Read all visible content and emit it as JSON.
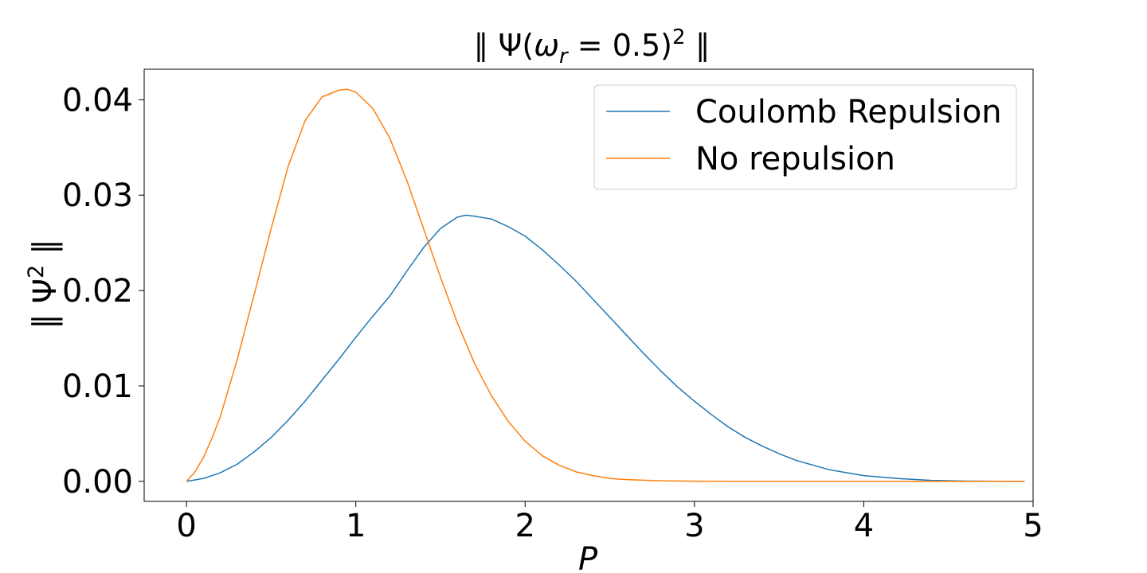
{
  "chart_data": {
    "type": "line",
    "title_parts": {
      "open": "∥ Ψ(",
      "omega": "ω",
      "sub": "r",
      "eq": " = 0.5)",
      "sup": "2",
      "close": " ∥"
    },
    "xlabel": "P",
    "ylabel_parts": {
      "open": "∥ Ψ",
      "sup": "2",
      "close": " ∥"
    },
    "xlim": [
      -0.25,
      5.0
    ],
    "ylim": [
      -0.0021,
      0.0432
    ],
    "xticks": [
      0,
      1,
      2,
      3,
      4,
      5
    ],
    "xtick_labels": [
      "0",
      "1",
      "2",
      "3",
      "4",
      "5"
    ],
    "yticks": [
      0.0,
      0.01,
      0.02,
      0.03,
      0.04
    ],
    "ytick_labels": [
      "0.00",
      "0.01",
      "0.02",
      "0.03",
      "0.04"
    ],
    "grid": false,
    "legend_position": "top-right",
    "series": [
      {
        "name": "Coulomb Repulsion",
        "color": "#1f77b4",
        "x": [
          0.0,
          0.1,
          0.2,
          0.3,
          0.4,
          0.5,
          0.6,
          0.7,
          0.8,
          0.9,
          1.0,
          1.1,
          1.2,
          1.3,
          1.4,
          1.5,
          1.6,
          1.65,
          1.7,
          1.8,
          1.9,
          2.0,
          2.1,
          2.2,
          2.3,
          2.4,
          2.5,
          2.6,
          2.7,
          2.8,
          2.9,
          3.0,
          3.1,
          3.2,
          3.3,
          3.4,
          3.5,
          3.6,
          3.7,
          3.8,
          3.9,
          4.0,
          4.2,
          4.4,
          4.6,
          4.8,
          4.95
        ],
        "y": [
          0.0,
          0.0003,
          0.0009,
          0.0018,
          0.0031,
          0.0046,
          0.0064,
          0.0084,
          0.0106,
          0.0128,
          0.0151,
          0.0173,
          0.0194,
          0.022,
          0.0245,
          0.0265,
          0.0277,
          0.0279,
          0.0278,
          0.0275,
          0.0267,
          0.0257,
          0.0243,
          0.0227,
          0.021,
          0.0191,
          0.0172,
          0.0153,
          0.0134,
          0.0116,
          0.0099,
          0.0084,
          0.007,
          0.0057,
          0.0046,
          0.0037,
          0.0029,
          0.0022,
          0.0017,
          0.0012,
          0.0009,
          0.0006,
          0.0003,
          0.0001,
          3e-05,
          1e-05,
          0.0
        ]
      },
      {
        "name": "No repulsion",
        "color": "#ff7f0e",
        "x": [
          0.0,
          0.05,
          0.1,
          0.15,
          0.2,
          0.3,
          0.4,
          0.5,
          0.6,
          0.7,
          0.8,
          0.9,
          0.95,
          1.0,
          1.1,
          1.2,
          1.3,
          1.4,
          1.5,
          1.6,
          1.7,
          1.8,
          1.9,
          2.0,
          2.1,
          2.2,
          2.3,
          2.4,
          2.5,
          2.6,
          2.8,
          3.0,
          3.2,
          3.4,
          3.6,
          4.0,
          4.4,
          4.95
        ],
        "y": [
          0.0,
          0.001,
          0.0025,
          0.0045,
          0.0068,
          0.0128,
          0.0196,
          0.0265,
          0.033,
          0.0378,
          0.0403,
          0.041,
          0.0411,
          0.0408,
          0.0391,
          0.036,
          0.0316,
          0.0265,
          0.0214,
          0.0166,
          0.0124,
          0.009,
          0.0063,
          0.0042,
          0.0027,
          0.0017,
          0.001,
          0.0006,
          0.0003,
          0.00018,
          6e-05,
          2e-05,
          0.0,
          0.0,
          0.0,
          0.0,
          0.0,
          0.0
        ]
      }
    ]
  }
}
